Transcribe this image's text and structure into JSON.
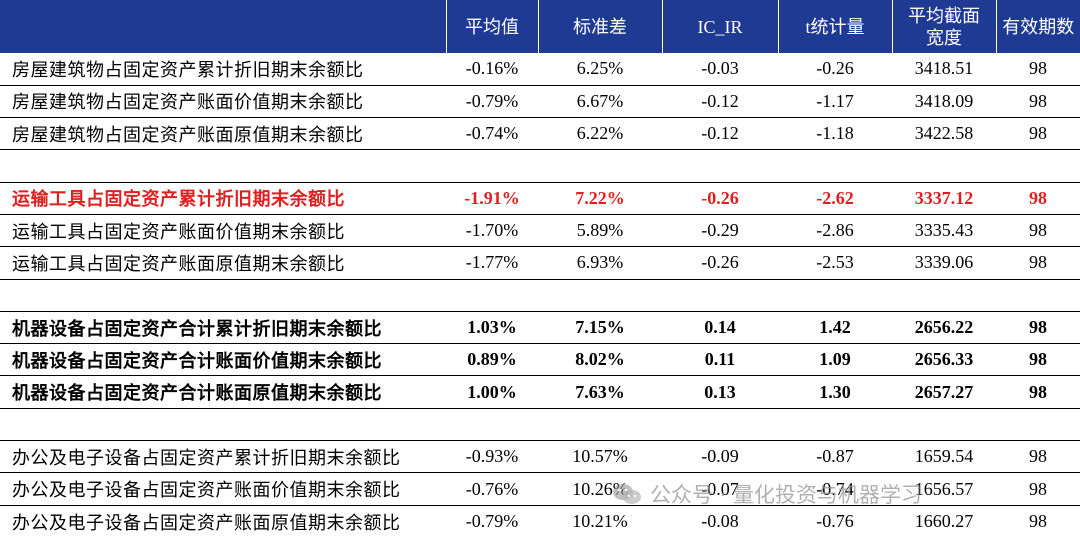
{
  "header": {
    "columns": [
      "",
      "平均值",
      "标准差",
      "IC_IR",
      "t统计量",
      "平均截面宽度",
      "有效期数"
    ]
  },
  "rows": [
    {
      "style": "normal",
      "cells": [
        "房屋建筑物占固定资产累计折旧期末余额比",
        "-0.16%",
        "6.25%",
        "-0.03",
        "-0.26",
        "3418.51",
        "98"
      ]
    },
    {
      "style": "normal",
      "cells": [
        "房屋建筑物占固定资产账面价值期末余额比",
        "-0.79%",
        "6.67%",
        "-0.12",
        "-1.17",
        "3418.09",
        "98"
      ]
    },
    {
      "style": "normal",
      "cells": [
        "房屋建筑物占固定资产账面原值期末余额比",
        "-0.74%",
        "6.22%",
        "-0.12",
        "-1.18",
        "3422.58",
        "98"
      ]
    },
    {
      "style": "spacer",
      "cells": [
        "",
        "",
        "",
        "",
        "",
        "",
        ""
      ]
    },
    {
      "style": "red",
      "cells": [
        "运输工具占固定资产累计折旧期末余额比",
        "-1.91%",
        "7.22%",
        "-0.26",
        "-2.62",
        "3337.12",
        "98"
      ]
    },
    {
      "style": "normal",
      "cells": [
        "运输工具占固定资产账面价值期末余额比",
        "-1.70%",
        "5.89%",
        "-0.29",
        "-2.86",
        "3335.43",
        "98"
      ]
    },
    {
      "style": "normal",
      "cells": [
        "运输工具占固定资产账面原值期末余额比",
        "-1.77%",
        "6.93%",
        "-0.26",
        "-2.53",
        "3339.06",
        "98"
      ]
    },
    {
      "style": "spacer",
      "cells": [
        "",
        "",
        "",
        "",
        "",
        "",
        ""
      ]
    },
    {
      "style": "bold",
      "cells": [
        "机器设备占固定资产合计累计折旧期末余额比",
        "1.03%",
        "7.15%",
        "0.14",
        "1.42",
        "2656.22",
        "98"
      ]
    },
    {
      "style": "bold",
      "cells": [
        "机器设备占固定资产合计账面价值期末余额比",
        "0.89%",
        "8.02%",
        "0.11",
        "1.09",
        "2656.33",
        "98"
      ]
    },
    {
      "style": "bold",
      "cells": [
        "机器设备占固定资产合计账面原值期末余额比",
        "1.00%",
        "7.63%",
        "0.13",
        "1.30",
        "2657.27",
        "98"
      ]
    },
    {
      "style": "spacer",
      "cells": [
        "",
        "",
        "",
        "",
        "",
        "",
        ""
      ]
    },
    {
      "style": "normal",
      "cells": [
        "办公及电子设备占固定资产累计折旧期末余额比",
        "-0.93%",
        "10.57%",
        "-0.09",
        "-0.87",
        "1659.54",
        "98"
      ]
    },
    {
      "style": "normal",
      "cells": [
        "办公及电子设备占固定资产账面价值期末余额比",
        "-0.76%",
        "10.26%",
        "-0.07",
        "-0.74",
        "1656.57",
        "98"
      ]
    },
    {
      "style": "last",
      "cells": [
        "办公及电子设备占固定资产账面原值期末余额比",
        "-0.79%",
        "10.21%",
        "-0.08",
        "-0.76",
        "1660.27",
        "98"
      ]
    }
  ],
  "watermark": {
    "text": "公众号 · 量化投资与机器学习",
    "icon": "wechat-icon"
  }
}
